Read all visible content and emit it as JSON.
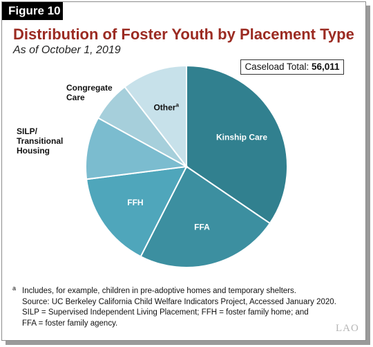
{
  "figure_label": "Figure 10",
  "title": "Distribution of Foster Youth by Placement Type",
  "subtitle": "As of October 1, 2019",
  "caseload": {
    "label": "Caseload Total:",
    "value": "56,011"
  },
  "chart_data": {
    "type": "pie",
    "total": 56011,
    "start_angle_deg": 0,
    "direction": "clockwise",
    "slices": [
      {
        "label": "Kinship Care",
        "percent": 34.5,
        "color": "#31808f",
        "label_pos": "inside"
      },
      {
        "label": "FFA",
        "percent": 23.0,
        "color": "#3c8fa0",
        "label_pos": "inside"
      },
      {
        "label": "FFH",
        "percent": 15.5,
        "color": "#4fa6bb",
        "label_pos": "inside"
      },
      {
        "label": "SILP/\nTransitional\nHousing",
        "percent": 10.0,
        "color": "#7bbccf",
        "label_pos": "outside"
      },
      {
        "label": "Congregate\nCare",
        "percent": 6.5,
        "color": "#a6cfdb",
        "label_pos": "outside"
      },
      {
        "label": "Other",
        "superscript": "a",
        "percent": 10.5,
        "color": "#c7e1ea",
        "label_pos": "inside"
      }
    ]
  },
  "footnotes": {
    "note_mark": "a",
    "note_a": "Includes, for example, children in pre-adoptive homes and temporary shelters.",
    "source": "Source: UC Berkeley California Child Welfare Indicators Project, Accessed January 2020.",
    "abbrev_1": "SILP = Supervised Independent Living Placement; FFH = foster family home; and",
    "abbrev_2": "FFA = foster family agency."
  },
  "logo_text": "LAO"
}
